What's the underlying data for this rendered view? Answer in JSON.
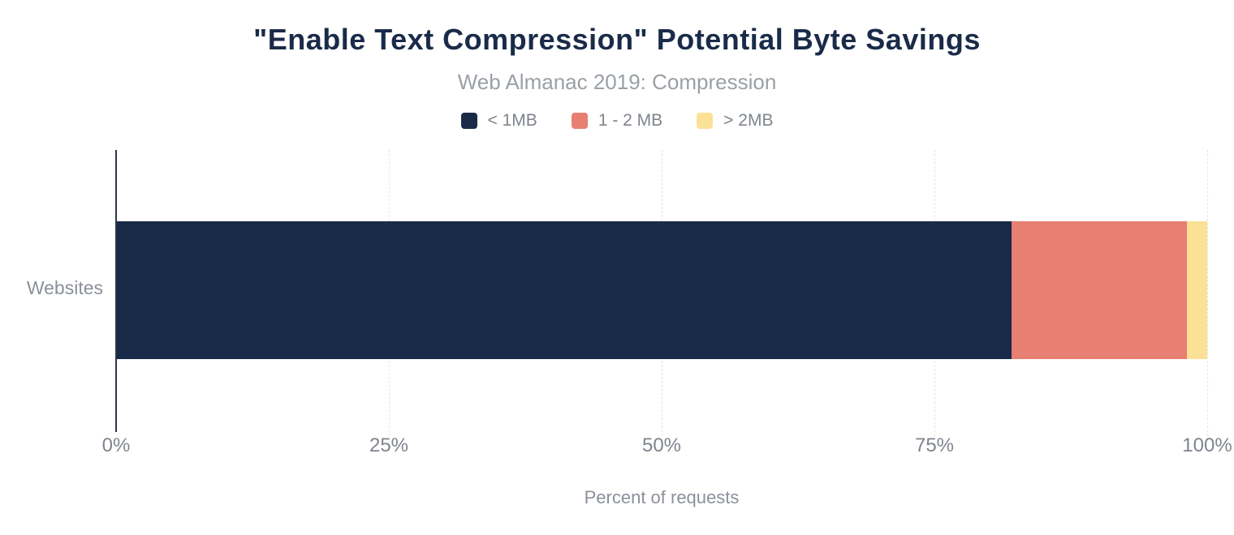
{
  "chart": {
    "title": "\"Enable Text Compression\" Potential Byte Savings",
    "subtitle": "Web Almanac 2019: Compression",
    "xlabel": "Percent of requests",
    "category_label": "Websites"
  },
  "chart_data": {
    "type": "bar",
    "orientation": "horizontal",
    "stacked": true,
    "title": "\"Enable Text Compression\" Potential Byte Savings",
    "subtitle": "Web Almanac 2019: Compression",
    "xlabel": "Percent of requests",
    "ylabel": "",
    "categories": [
      "Websites"
    ],
    "series": [
      {
        "name": "< 1MB",
        "color": "#1A2B49",
        "values": [
          82.0
        ]
      },
      {
        "name": "1 - 2 MB",
        "color": "#E77F73",
        "values": [
          16.1
        ]
      },
      {
        "name": "> 2MB",
        "color": "#FBE195",
        "values": [
          1.8
        ]
      }
    ],
    "xlim": [
      0,
      100
    ],
    "xticks": [
      {
        "label": "0%",
        "value": 0
      },
      {
        "label": "25%",
        "value": 25
      },
      {
        "label": "50%",
        "value": 50
      },
      {
        "label": "75%",
        "value": 75
      },
      {
        "label": "100%",
        "value": 100
      }
    ],
    "grid": "vertical-dashed",
    "legend_position": "top"
  },
  "colors": {
    "title": "#1A2B49",
    "subtitle": "#9AA0A6",
    "axis_text": "#7F848D",
    "gridline": "#E4E6EA",
    "axis_line": "#2B3648",
    "background": "#FFFFFF"
  }
}
